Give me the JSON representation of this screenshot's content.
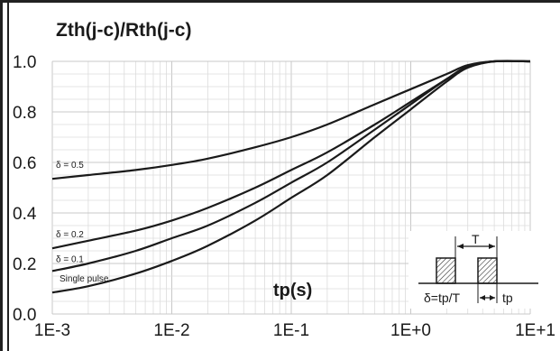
{
  "chart_data": {
    "type": "line",
    "title": "Zth(j-c)/Rth(j-c)",
    "xlabel": "tp(s)",
    "ylabel": "",
    "x_scale": "log",
    "xlim": [
      0.001,
      10
    ],
    "ylim": [
      0,
      1
    ],
    "grid": true,
    "x_tick_labels": [
      "1E-3",
      "1E-2",
      "1E-1",
      "1E+0",
      "1E+1"
    ],
    "x_tick_values": [
      0.001,
      0.01,
      0.1,
      1,
      10
    ],
    "y_tick_labels": [
      "0.0",
      "0.2",
      "0.4",
      "0.6",
      "0.8",
      "1.0"
    ],
    "y_tick_values": [
      0,
      0.2,
      0.4,
      0.6,
      0.8,
      1.0
    ],
    "series": [
      {
        "name": "δ = 0.5",
        "x": [
          0.001,
          0.002,
          0.005,
          0.01,
          0.02,
          0.05,
          0.1,
          0.2,
          0.5,
          1,
          2,
          3,
          5,
          10
        ],
        "y": [
          0.535,
          0.55,
          0.57,
          0.59,
          0.615,
          0.66,
          0.7,
          0.75,
          0.83,
          0.89,
          0.95,
          0.985,
          1.0,
          1.0
        ]
      },
      {
        "name": "δ = 0.2",
        "x": [
          0.001,
          0.002,
          0.005,
          0.01,
          0.02,
          0.05,
          0.1,
          0.2,
          0.5,
          1,
          2,
          3,
          5,
          10
        ],
        "y": [
          0.26,
          0.29,
          0.33,
          0.37,
          0.42,
          0.5,
          0.57,
          0.64,
          0.75,
          0.84,
          0.93,
          0.98,
          1.0,
          1.0
        ]
      },
      {
        "name": "δ = 0.1",
        "x": [
          0.001,
          0.002,
          0.005,
          0.01,
          0.02,
          0.05,
          0.1,
          0.2,
          0.5,
          1,
          2,
          3,
          5,
          10
        ],
        "y": [
          0.17,
          0.2,
          0.25,
          0.3,
          0.35,
          0.44,
          0.52,
          0.6,
          0.73,
          0.83,
          0.93,
          0.98,
          1.0,
          1.0
        ]
      },
      {
        "name": "Single pulse",
        "x": [
          0.001,
          0.002,
          0.005,
          0.01,
          0.02,
          0.05,
          0.1,
          0.2,
          0.5,
          1,
          2,
          3,
          5,
          10
        ],
        "y": [
          0.085,
          0.11,
          0.16,
          0.21,
          0.27,
          0.37,
          0.46,
          0.55,
          0.7,
          0.81,
          0.92,
          0.975,
          1.0,
          1.0
        ]
      }
    ],
    "inset": {
      "period_label": "T",
      "duty_label": "δ=tp/T",
      "pulse_label": "tp"
    }
  }
}
